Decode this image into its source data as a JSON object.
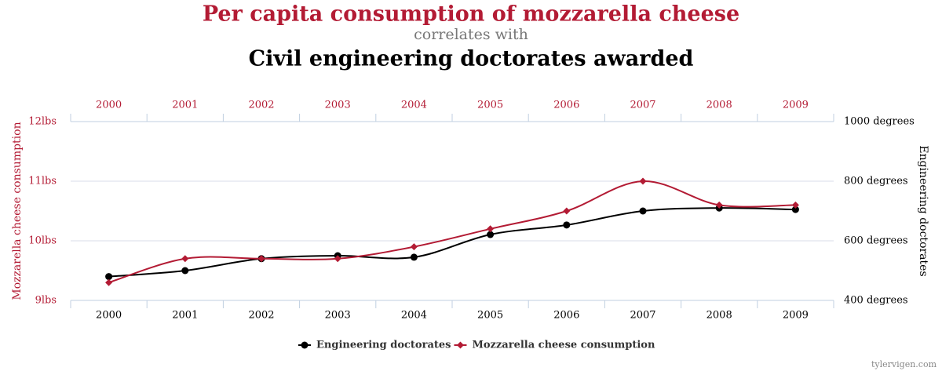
{
  "chart_data": {
    "type": "line",
    "title": "Per capita consumption of mozzarella cheese",
    "subtitle": "correlates with",
    "title2": "Civil engineering doctorates awarded",
    "categories": [
      "2000",
      "2001",
      "2002",
      "2003",
      "2004",
      "2005",
      "2006",
      "2007",
      "2008",
      "2009"
    ],
    "series": [
      {
        "name": "Engineering doctorates",
        "color": "#000000",
        "axis": "y2",
        "marker": "circle",
        "values": [
          480,
          500,
          540,
          550,
          545,
          621,
          653,
          700,
          710,
          705
        ]
      },
      {
        "name": "Mozzarella cheese consumption",
        "color": "#b31b34",
        "marker": "diamond",
        "values": [
          9.3,
          9.7,
          9.7,
          9.7,
          9.9,
          10.2,
          10.5,
          11.0,
          10.6,
          10.6
        ]
      }
    ],
    "ylabel": "Mozzarella cheese consumption",
    "y2label": "Engineering doctorates",
    "ylim": [
      9,
      12
    ],
    "yticks": [
      {
        "value": 9,
        "label": "9lbs"
      },
      {
        "value": 10,
        "label": "10lbs"
      },
      {
        "value": 11,
        "label": "11lbs"
      },
      {
        "value": 12,
        "label": "12lbs"
      }
    ],
    "y2lim": [
      400,
      1000
    ],
    "y2ticks": [
      {
        "value": 400,
        "label": "400 degrees"
      },
      {
        "value": 600,
        "label": "600 degrees"
      },
      {
        "value": 800,
        "label": "800 degrees"
      },
      {
        "value": 1000,
        "label": "1000 degrees"
      }
    ],
    "grid": true,
    "smooth": true,
    "footer": "tylervigen.com"
  }
}
